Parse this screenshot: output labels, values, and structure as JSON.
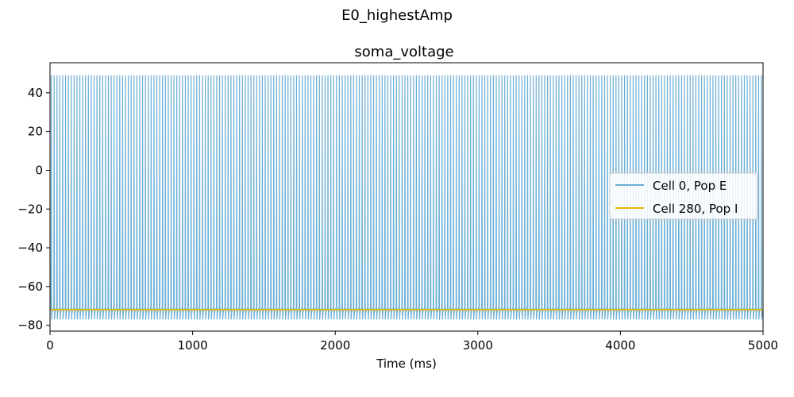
{
  "figure": {
    "suptitle": "E0_highestAmp"
  },
  "chart_data": {
    "type": "line",
    "title": "soma_voltage",
    "xlabel": "Time (ms)",
    "ylabel": "",
    "xlim": [
      0,
      5000
    ],
    "ylim": [
      -83,
      55.5
    ],
    "xticks": [
      0,
      1000,
      2000,
      3000,
      4000,
      5000
    ],
    "yticks": [
      -80,
      -60,
      -40,
      -20,
      0,
      20,
      40
    ],
    "grid": false,
    "legend_position": "center-right",
    "series": [
      {
        "name": "Cell 0, Pop E",
        "color": "#6baed6",
        "pattern": "periodic-spikes",
        "spike_peak": 49,
        "trough": -77,
        "baseline": -72,
        "spike_count": 250,
        "t_start": 0,
        "t_end": 5000
      },
      {
        "name": "Cell 280, Pop I",
        "color": "#e6b800",
        "x": [
          0,
          5000
        ],
        "y": [
          -72,
          -72
        ]
      }
    ]
  }
}
